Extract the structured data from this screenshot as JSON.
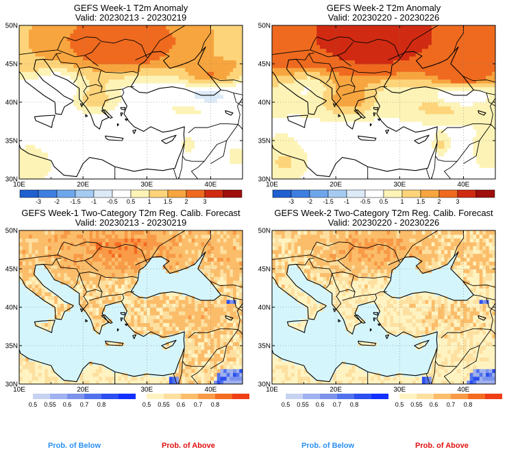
{
  "panels": [
    {
      "id": "p1",
      "kind": "anom",
      "title": "GEFS Week-1 T2m Anomaly",
      "valid": "Valid: 20230213 - 20230219",
      "warm_bias": 0.0
    },
    {
      "id": "p2",
      "kind": "anom",
      "title": "GEFS Week-2 T2m Anomaly",
      "valid": "Valid: 20230220 - 20230226",
      "warm_bias": 0.12
    },
    {
      "id": "p3",
      "kind": "prob",
      "title": "GEFS Week-1 Two-Category T2m Reg. Calib. Forecast",
      "valid": "Valid: 20230213 - 20230219",
      "warm_bias": 0.0
    },
    {
      "id": "p4",
      "kind": "prob",
      "title": "GEFS Week-2 Two-Category T2m Reg. Calib. Forecast",
      "valid": "Valid: 20230220 - 20230226",
      "warm_bias": -0.05
    }
  ],
  "axes": {
    "lon_range": [
      10,
      45
    ],
    "lat_range": [
      30,
      50
    ],
    "lon_ticks": [
      {
        "value": 10,
        "label": "10E"
      },
      {
        "value": 20,
        "label": "20E"
      },
      {
        "value": 30,
        "label": "30E"
      },
      {
        "value": 40,
        "label": "40E"
      }
    ],
    "lat_ticks": [
      {
        "value": 50,
        "label": "50N"
      },
      {
        "value": 45,
        "label": "45N"
      },
      {
        "value": 40,
        "label": "40N"
      },
      {
        "value": 35,
        "label": "35N"
      },
      {
        "value": 30,
        "label": "30N"
      }
    ]
  },
  "anomaly_colorbar": {
    "labels": [
      "-3",
      "-2",
      "-1.5",
      "-1",
      "-0.5",
      "0.5",
      "1",
      "1.5",
      "2",
      "3"
    ],
    "colors": [
      "#1f5fd0",
      "#3d7fe0",
      "#6ea6ec",
      "#a5cbf2",
      "#dceaf8",
      "#ffffff",
      "#fdf3b6",
      "#fdd47a",
      "#f7a53f",
      "#ef6a1f",
      "#d02b12",
      "#a00f0c"
    ]
  },
  "below_colorbar": {
    "labels": [
      "0.5",
      "0.55",
      "0.6",
      "0.7",
      "0.8"
    ],
    "colors": [
      "#c7d2f2",
      "#9fb1ee",
      "#7c93ec",
      "#5172ec",
      "#2c4ff0",
      "#1230ff"
    ]
  },
  "above_colorbar": {
    "labels": [
      "0.5",
      "0.55",
      "0.6",
      "0.7",
      "0.8"
    ],
    "colors": [
      "#fff3c2",
      "#fde0a0",
      "#fbbd6a",
      "#f89a47",
      "#f46b22",
      "#ef3d16"
    ]
  },
  "legend": {
    "below_label": "Prob. of Below",
    "above_label": "Prob. of Above",
    "below_color": "#2a8ff0",
    "above_color": "#e01010"
  },
  "colors": {
    "sea_prob": "#d4f5fb",
    "border": "#000000"
  }
}
